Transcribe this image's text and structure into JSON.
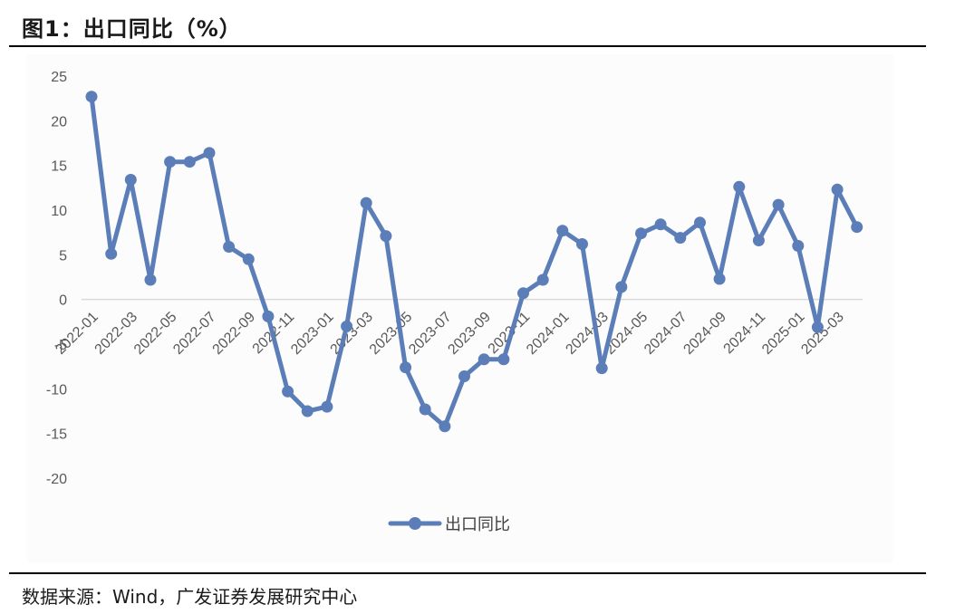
{
  "header": {
    "title": "图1：出口同比（%）"
  },
  "footer": {
    "source": "数据来源：Wind，广发证券发展研究中心"
  },
  "colors": {
    "series": "#5B7DB8",
    "zero_line": "#d9d9d9",
    "tick_text": "#595959"
  },
  "chart_data": {
    "type": "line",
    "title": "",
    "xlabel": "",
    "ylabel": "",
    "ylim": [
      -20,
      25
    ],
    "yticks": [
      25,
      20,
      15,
      10,
      5,
      0,
      -5,
      -10,
      -15,
      -20
    ],
    "x": [
      "2022-01",
      "2022-02",
      "2022-03",
      "2022-04",
      "2022-05",
      "2022-06",
      "2022-07",
      "2022-08",
      "2022-09",
      "2022-10",
      "2022-11",
      "2022-12",
      "2023-01",
      "2023-02",
      "2023-03",
      "2023-04",
      "2023-05",
      "2023-06",
      "2023-07",
      "2023-08",
      "2023-09",
      "2023-10",
      "2023-11",
      "2023-12",
      "2024-01",
      "2024-02",
      "2024-03",
      "2024-04",
      "2024-05",
      "2024-06",
      "2024-07",
      "2024-08",
      "2024-09",
      "2024-10",
      "2024-11",
      "2024-12",
      "2025-01",
      "2025-02",
      "2025-03",
      "2025-04"
    ],
    "xtick_labels": [
      "2022-01",
      "2022-03",
      "2022-05",
      "2022-07",
      "2022-09",
      "2022-11",
      "2023-01",
      "2023-03",
      "2023-05",
      "2023-07",
      "2023-09",
      "2023-11",
      "2024-01",
      "2024-03",
      "2024-05",
      "2024-07",
      "2024-09",
      "2024-11",
      "2025-01",
      "2025-03"
    ],
    "series": [
      {
        "name": "出口同比",
        "values": [
          22.7,
          5.1,
          13.4,
          2.2,
          15.4,
          15.4,
          16.4,
          5.9,
          4.5,
          -1.9,
          -10.3,
          -12.5,
          -12.0,
          -3.0,
          10.8,
          7.1,
          -7.6,
          -12.3,
          -14.2,
          -8.6,
          -6.7,
          -6.7,
          0.7,
          2.2,
          7.7,
          6.2,
          -7.7,
          1.4,
          7.4,
          8.4,
          6.9,
          8.6,
          2.3,
          12.6,
          6.6,
          10.6,
          6.0,
          -3.1,
          12.3,
          8.1
        ]
      }
    ],
    "legend": {
      "position": "bottom-center"
    },
    "grid": false
  }
}
